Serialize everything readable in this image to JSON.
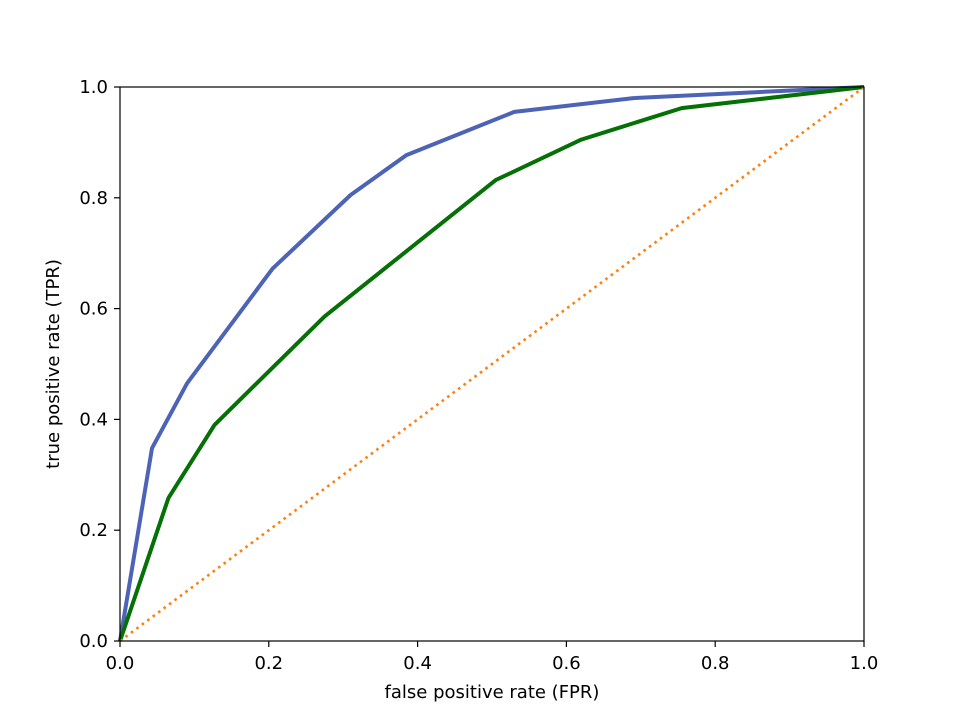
{
  "chart_data": {
    "type": "line",
    "title": "",
    "xlabel": "false positive rate (FPR)",
    "ylabel": "true positive rate (TPR)",
    "xlim": [
      0,
      1
    ],
    "ylim": [
      0,
      1
    ],
    "xticks": [
      "0.0",
      "0.2",
      "0.4",
      "0.6",
      "0.8",
      "1.0"
    ],
    "yticks": [
      "0.0",
      "0.2",
      "0.4",
      "0.6",
      "0.8",
      "1.0"
    ],
    "grid": false,
    "legend": "none",
    "series": [
      {
        "color": "#4c63b6",
        "style": "solid",
        "x": [
          0.0,
          0.043,
          0.09,
          0.205,
          0.31,
          0.385,
          0.53,
          0.69,
          1.0
        ],
        "y": [
          0.0,
          0.348,
          0.465,
          0.672,
          0.805,
          0.877,
          0.955,
          0.98,
          1.0
        ]
      },
      {
        "color": "#057005",
        "style": "solid",
        "x": [
          0.0,
          0.065,
          0.127,
          0.275,
          0.505,
          0.62,
          0.755,
          1.0
        ],
        "y": [
          0.0,
          0.258,
          0.39,
          0.586,
          0.832,
          0.905,
          0.962,
          1.0
        ]
      },
      {
        "color": "#ff7f0e",
        "style": "dotted",
        "x": [
          0.0,
          1.0
        ],
        "y": [
          0.0,
          1.0
        ]
      }
    ]
  }
}
